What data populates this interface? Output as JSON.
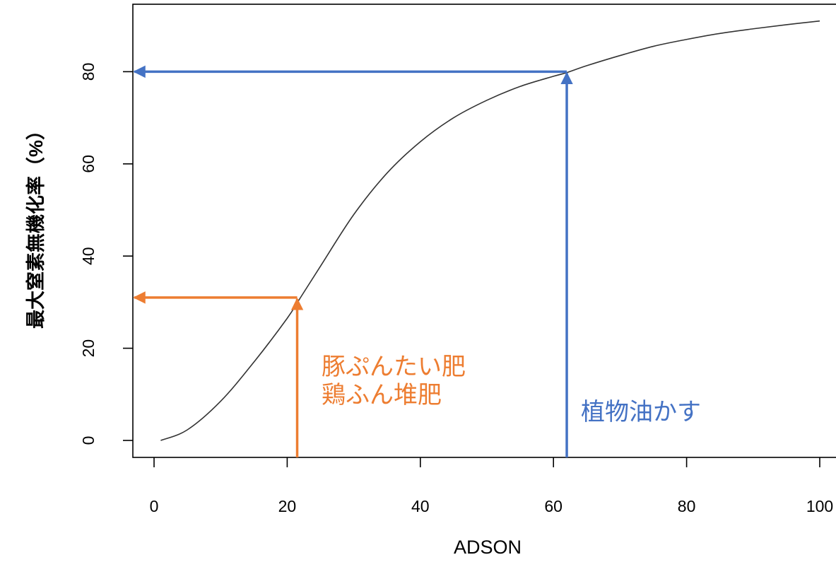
{
  "chart_data": {
    "type": "line",
    "title": "",
    "xlabel": "ADSON",
    "ylabel": "最大窒素無機化率（%）",
    "xlim": [
      0,
      100
    ],
    "ylim": [
      0,
      90
    ],
    "x_ticks": [
      0,
      20,
      40,
      60,
      80,
      100
    ],
    "x_tick_labels": [
      "0",
      "20",
      "40",
      "60",
      "80",
      "100"
    ],
    "y_ticks": [
      0,
      20,
      40,
      60,
      80
    ],
    "y_tick_labels": [
      "0",
      "20",
      "40",
      "60",
      "80"
    ],
    "grid": false,
    "legend": "none",
    "series": [
      {
        "color": "#333333",
        "x": [
          1,
          5,
          10,
          15,
          20,
          22,
          25,
          30,
          35,
          40,
          45,
          50,
          55,
          60,
          62,
          65,
          70,
          75,
          80,
          85,
          90,
          95,
          100
        ],
        "y": [
          0.0,
          2.3,
          8.5,
          17.0,
          26.5,
          31.0,
          37.8,
          49.0,
          58.0,
          64.8,
          70.0,
          73.8,
          76.8,
          79.0,
          79.8,
          81.3,
          83.5,
          85.5,
          87.0,
          88.3,
          89.3,
          90.2,
          91.0
        ]
      }
    ],
    "annotations": [
      {
        "lines": [
          "豚ぷんたい肥",
          "鶏ふん堆肥"
        ],
        "color": "#ED7D31",
        "x": 21.5,
        "y": 31
      },
      {
        "lines": [
          "植物油かす"
        ],
        "color": "#4472C4",
        "x": 62,
        "y": 80
      }
    ]
  }
}
